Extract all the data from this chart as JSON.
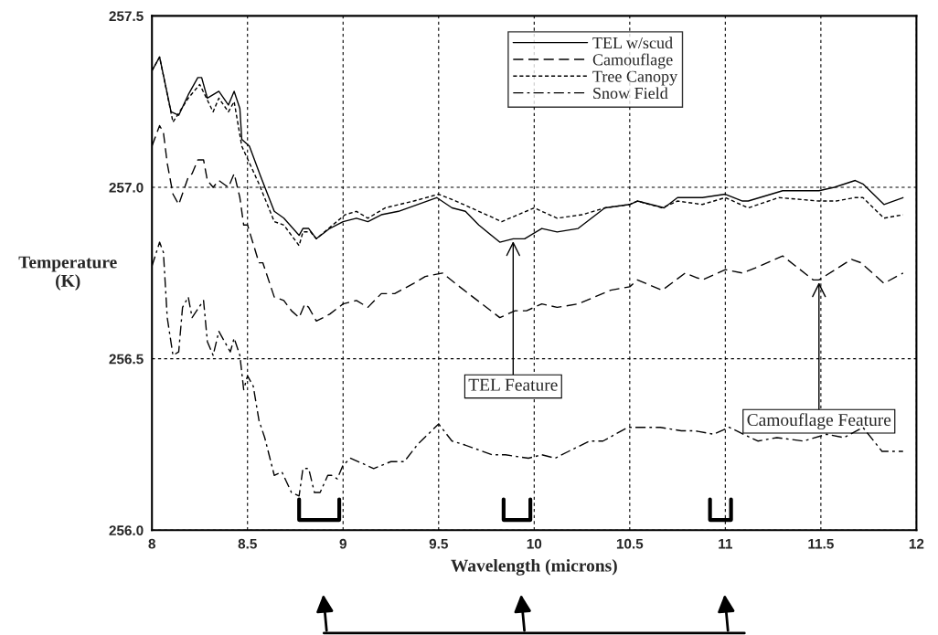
{
  "chart_data": {
    "type": "line",
    "xlabel": "Wavelength (microns)",
    "ylabel": "Temperature\n(K)",
    "xlim": [
      8,
      12
    ],
    "ylim": [
      256.0,
      257.5
    ],
    "xticks": [
      8,
      8.5,
      9,
      9.5,
      10,
      10.5,
      11,
      11.5,
      12
    ],
    "yticks": [
      {
        "value": 256.0,
        "label": "256.0"
      },
      {
        "value": 256.5,
        "label": "256.5"
      },
      {
        "value": 257.0,
        "label": "257.0"
      },
      {
        "value": 257.5,
        "label": "257.5"
      }
    ],
    "grid": true,
    "legend": "top",
    "annotations": [
      {
        "text": "TEL Feature",
        "x": 9.89,
        "y": 256.85
      },
      {
        "text": "Camouflage Feature",
        "x": 11.49,
        "y": 256.73
      }
    ],
    "series": [
      {
        "name": "TEL w/scud",
        "color": "#000000",
        "line_style": "solid",
        "x": [
          8.0,
          8.04,
          8.1,
          8.14,
          8.19,
          8.24,
          8.26,
          8.29,
          8.35,
          8.4,
          8.43,
          8.46,
          8.47,
          8.51,
          8.57,
          8.64,
          8.69,
          8.77,
          8.79,
          8.82,
          8.86,
          8.93,
          9.0,
          9.07,
          9.13,
          9.2,
          9.29,
          9.49,
          9.57,
          9.64,
          9.71,
          9.82,
          9.89,
          9.95,
          10.04,
          10.12,
          10.23,
          10.37,
          10.5,
          10.54,
          10.68,
          10.75,
          10.88,
          11.0,
          11.09,
          11.12,
          11.3,
          11.49,
          11.57,
          11.68,
          11.72,
          11.83,
          11.93
        ],
        "values": [
          257.34,
          257.38,
          257.22,
          257.21,
          257.27,
          257.32,
          257.32,
          257.26,
          257.28,
          257.24,
          257.28,
          257.23,
          257.14,
          257.12,
          257.03,
          256.93,
          256.91,
          256.86,
          256.88,
          256.88,
          256.85,
          256.88,
          256.9,
          256.91,
          256.9,
          256.92,
          256.93,
          256.97,
          256.94,
          256.93,
          256.89,
          256.84,
          256.85,
          256.85,
          256.88,
          256.87,
          256.88,
          256.94,
          256.95,
          256.96,
          256.94,
          256.97,
          256.97,
          256.98,
          256.96,
          256.96,
          256.99,
          256.99,
          257.0,
          257.02,
          257.01,
          256.95,
          256.97
        ]
      },
      {
        "name": "Camouflage",
        "color": "#000000",
        "line_style": "dashed",
        "x": [
          8.0,
          8.04,
          8.06,
          8.08,
          8.11,
          8.14,
          8.19,
          8.21,
          8.24,
          8.27,
          8.29,
          8.32,
          8.35,
          8.4,
          8.43,
          8.46,
          8.48,
          8.5,
          8.56,
          8.58,
          8.64,
          8.69,
          8.73,
          8.77,
          8.8,
          8.82,
          8.86,
          8.93,
          9.0,
          9.07,
          9.13,
          9.2,
          9.27,
          9.37,
          9.43,
          9.52,
          9.61,
          9.82,
          9.9,
          9.96,
          10.04,
          10.12,
          10.23,
          10.4,
          10.5,
          10.54,
          10.67,
          10.79,
          10.88,
          11.0,
          11.09,
          11.18,
          11.3,
          11.46,
          11.49,
          11.66,
          11.71,
          11.83,
          11.93
        ],
        "values": [
          257.12,
          257.18,
          257.16,
          257.07,
          256.98,
          256.95,
          257.03,
          257.04,
          257.08,
          257.08,
          257.02,
          257.0,
          257.02,
          257.0,
          257.04,
          256.97,
          256.89,
          256.89,
          256.78,
          256.78,
          256.68,
          256.67,
          256.64,
          256.62,
          256.66,
          256.65,
          256.61,
          256.63,
          256.66,
          256.67,
          256.65,
          256.69,
          256.69,
          256.72,
          256.74,
          256.75,
          256.71,
          256.62,
          256.64,
          256.64,
          256.66,
          256.65,
          256.66,
          256.7,
          256.71,
          256.73,
          256.7,
          256.75,
          256.73,
          256.76,
          256.75,
          256.77,
          256.8,
          256.73,
          256.73,
          256.79,
          256.78,
          256.72,
          256.75
        ]
      },
      {
        "name": "Tree Canopy",
        "color": "#000000",
        "line_style": "dotted",
        "x": [
          8.0,
          8.04,
          8.11,
          8.19,
          8.25,
          8.32,
          8.35,
          8.4,
          8.43,
          8.47,
          8.56,
          8.64,
          8.69,
          8.77,
          8.79,
          8.83,
          8.86,
          9.01,
          9.07,
          9.13,
          9.22,
          9.37,
          9.5,
          9.59,
          9.71,
          9.83,
          10.0,
          10.12,
          10.25,
          10.37,
          10.5,
          10.54,
          10.67,
          10.75,
          10.88,
          11.0,
          11.12,
          11.28,
          11.49,
          11.58,
          11.68,
          11.72,
          11.83,
          11.93
        ],
        "values": [
          257.34,
          257.38,
          257.19,
          257.26,
          257.3,
          257.22,
          257.26,
          257.22,
          257.25,
          257.12,
          257.01,
          256.9,
          256.89,
          256.83,
          256.87,
          256.87,
          256.85,
          256.92,
          256.93,
          256.91,
          256.94,
          256.96,
          256.98,
          256.96,
          256.93,
          256.9,
          256.94,
          256.91,
          256.92,
          256.94,
          256.95,
          256.96,
          256.94,
          256.96,
          256.95,
          256.97,
          256.94,
          256.97,
          256.96,
          256.96,
          256.97,
          256.97,
          256.91,
          256.92
        ]
      },
      {
        "name": "Snow Field",
        "color": "#000000",
        "line_style": "dashdot",
        "x": [
          8.0,
          8.04,
          8.06,
          8.08,
          8.11,
          8.14,
          8.16,
          8.19,
          8.21,
          8.27,
          8.29,
          8.32,
          8.35,
          8.41,
          8.43,
          8.46,
          8.48,
          8.5,
          8.53,
          8.56,
          8.59,
          8.64,
          8.68,
          8.73,
          8.77,
          8.79,
          8.82,
          8.85,
          8.88,
          8.92,
          8.94,
          8.97,
          9.0,
          9.04,
          9.16,
          9.25,
          9.32,
          9.39,
          9.5,
          9.57,
          9.63,
          9.78,
          9.85,
          9.97,
          10.04,
          10.11,
          10.18,
          10.29,
          10.36,
          10.49,
          10.59,
          10.66,
          10.77,
          10.84,
          10.94,
          11.02,
          11.17,
          11.27,
          11.41,
          11.53,
          11.62,
          11.72,
          11.82,
          11.93
        ],
        "values": [
          256.77,
          256.84,
          256.81,
          256.62,
          256.51,
          256.52,
          256.65,
          256.68,
          256.62,
          256.67,
          256.55,
          256.51,
          256.58,
          256.52,
          256.56,
          256.51,
          256.41,
          256.45,
          256.42,
          256.32,
          256.27,
          256.16,
          256.17,
          256.11,
          256.1,
          256.18,
          256.18,
          256.11,
          256.11,
          256.16,
          256.16,
          256.15,
          256.19,
          256.21,
          256.18,
          256.2,
          256.2,
          256.25,
          256.31,
          256.26,
          256.25,
          256.22,
          256.22,
          256.21,
          256.22,
          256.21,
          256.23,
          256.26,
          256.26,
          256.3,
          256.3,
          256.3,
          256.29,
          256.29,
          256.28,
          256.3,
          256.26,
          256.27,
          256.26,
          256.28,
          256.27,
          256.3,
          256.23,
          256.23
        ]
      }
    ]
  }
}
